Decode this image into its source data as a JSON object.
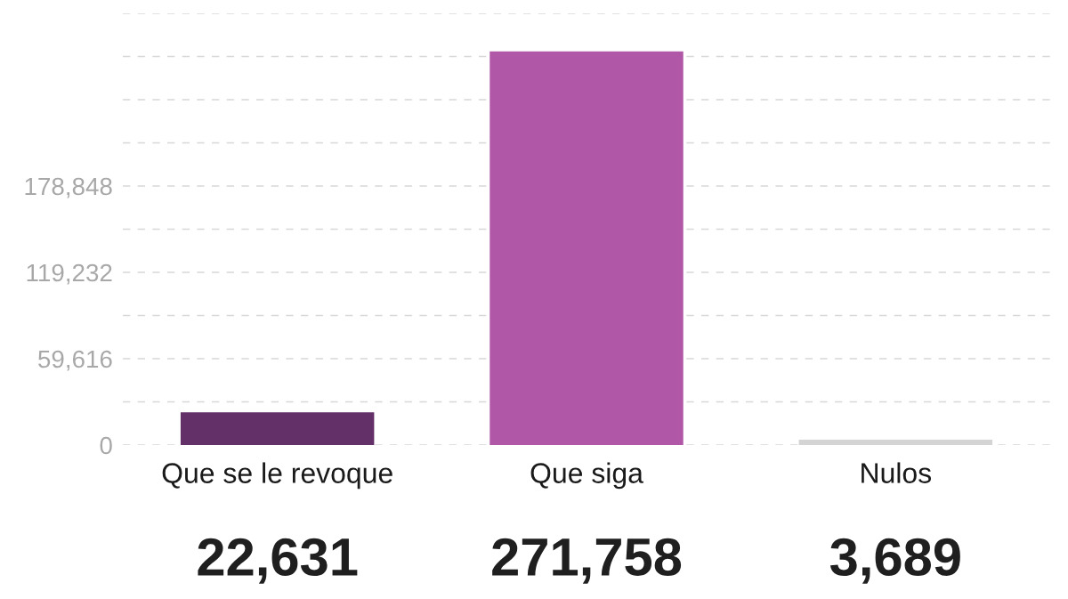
{
  "chart_data": {
    "type": "bar",
    "categories": [
      "Que se le revoque",
      "Que siga",
      "Nulos"
    ],
    "values": [
      22631,
      271758,
      3689
    ],
    "value_labels": [
      "22,631",
      "271,758",
      "3,689"
    ],
    "colors": [
      "#633068",
      "#b057a8",
      "#d4d4d4"
    ],
    "ylim": [
      0,
      298080
    ],
    "yticks": [
      0,
      {
        "value": 29808,
        "label": null
      },
      {
        "value": 59616,
        "label": "59,616"
      },
      {
        "value": 89424,
        "label": null
      },
      {
        "value": 119232,
        "label": "119,232"
      },
      {
        "value": 149040,
        "label": null
      },
      {
        "value": 178848,
        "label": "178,848"
      },
      {
        "value": 208656,
        "label": null
      },
      {
        "value": 238464,
        "label": null
      },
      {
        "value": 268272,
        "label": null
      },
      {
        "value": 298080,
        "label": null
      }
    ],
    "grid": "y"
  }
}
